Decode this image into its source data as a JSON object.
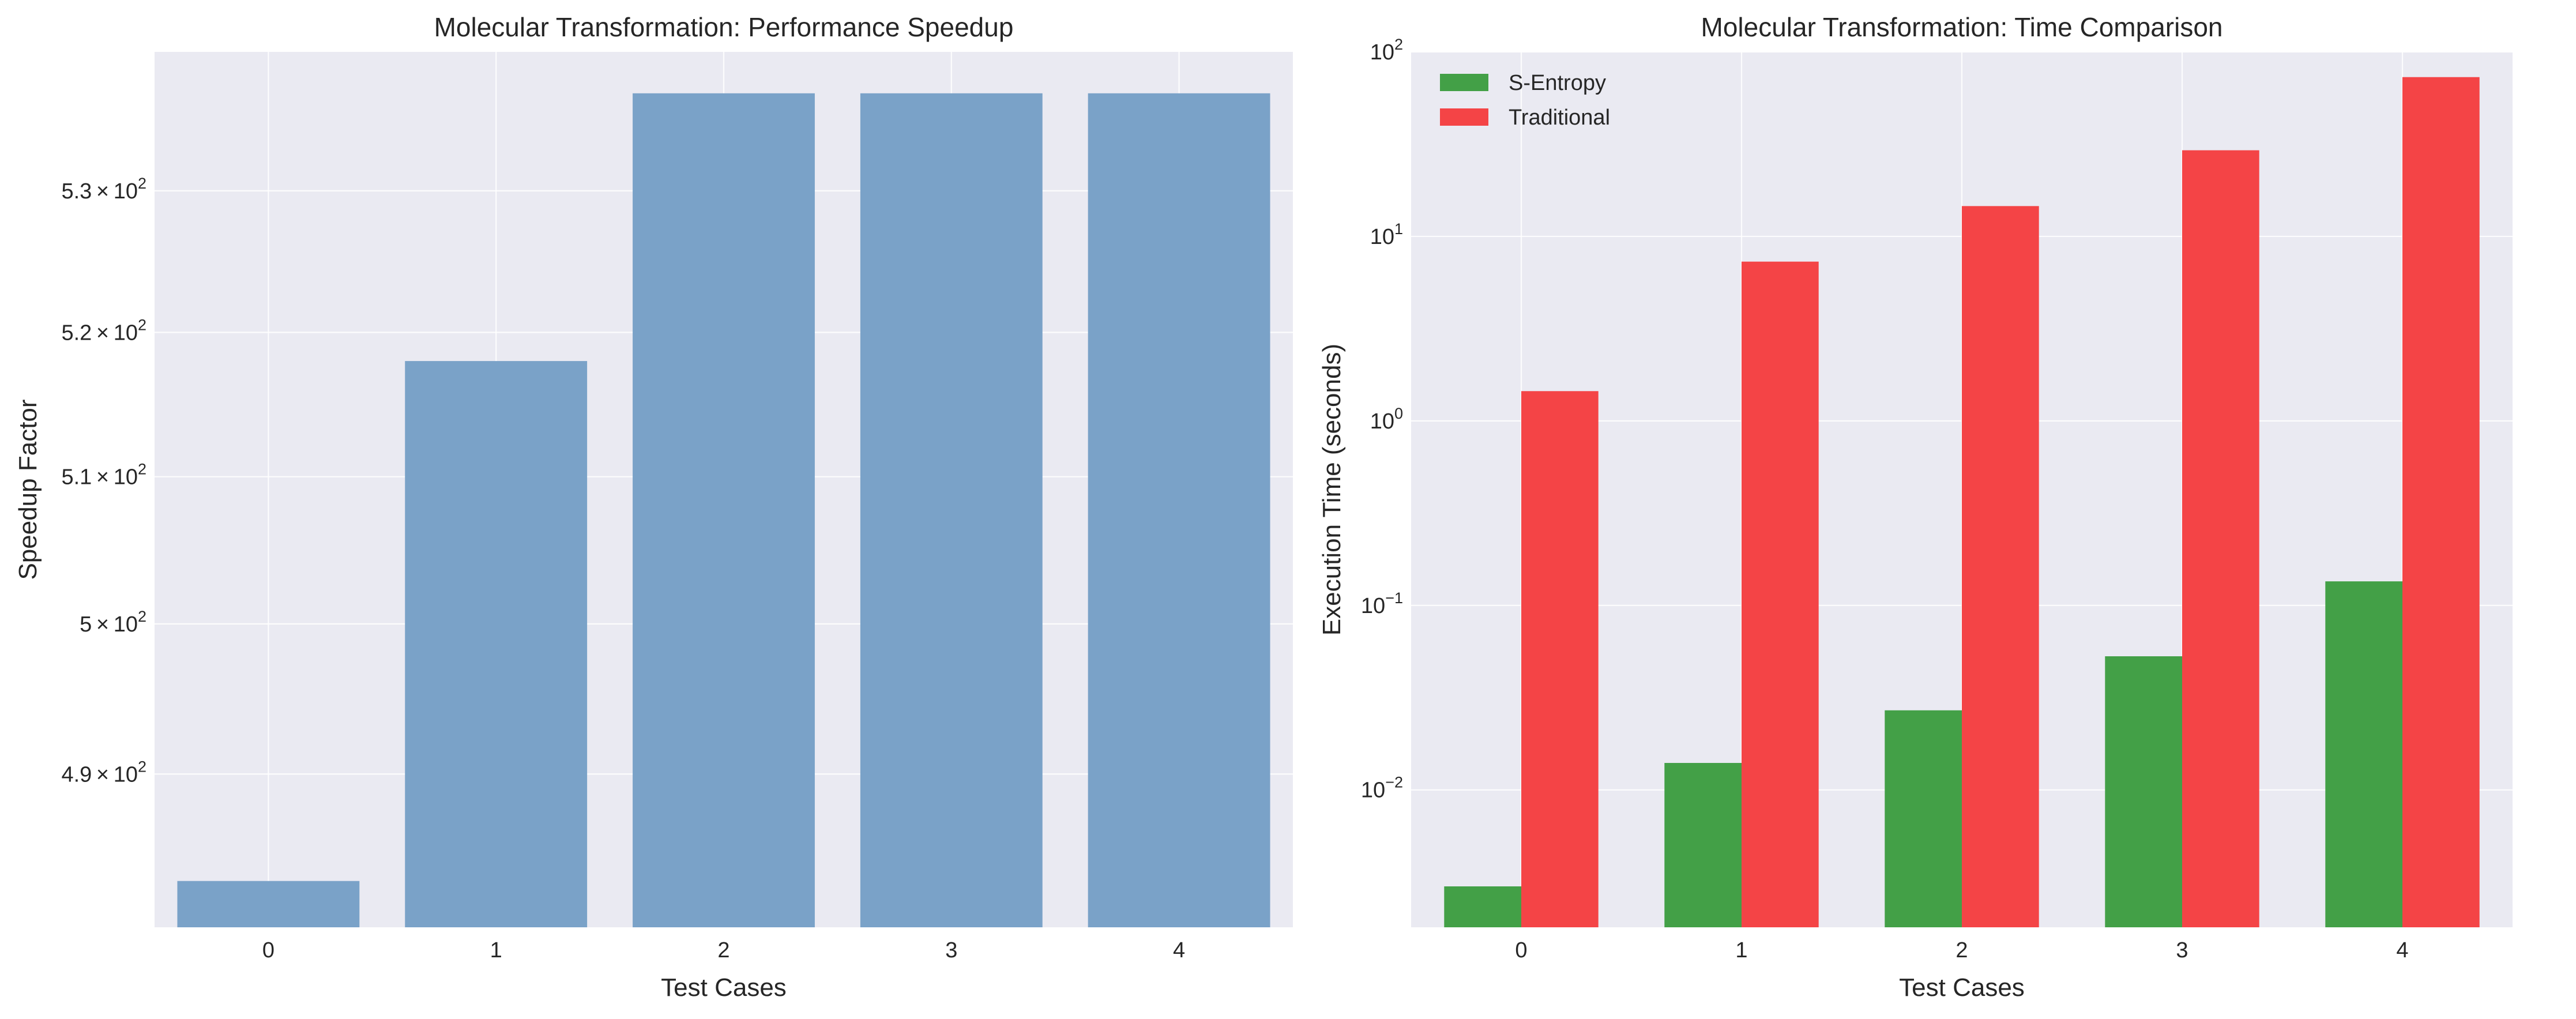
{
  "chart_data": [
    {
      "type": "bar",
      "title": "Molecular Transformation: Performance Speedup",
      "xlabel": "Test Cases",
      "ylabel": "Speedup Factor",
      "yscale": "log",
      "categories": [
        "0",
        "1",
        "2",
        "3",
        "4"
      ],
      "values": [
        483,
        518,
        537,
        537,
        537
      ],
      "ylim": [
        480,
        540
      ],
      "yticks": [
        {
          "value": 490,
          "mantissa": "4.9",
          "exponent": "2"
        },
        {
          "value": 500,
          "mantissa": "5",
          "exponent": "2"
        },
        {
          "value": 510,
          "mantissa": "5.1",
          "exponent": "2"
        },
        {
          "value": 520,
          "mantissa": "5.2",
          "exponent": "2"
        },
        {
          "value": 530,
          "mantissa": "5.3",
          "exponent": "2"
        }
      ],
      "color": "#7aa2c8",
      "grid": true
    },
    {
      "type": "bar",
      "title": "Molecular Transformation: Time Comparison",
      "xlabel": "Test Cases",
      "ylabel": "Execution Time (seconds)",
      "yscale": "log",
      "categories": [
        "0",
        "1",
        "2",
        "3",
        "4"
      ],
      "ylim": [
        0.0018,
        100
      ],
      "yticks": [
        {
          "value": 0.01,
          "base": "10",
          "exponent": "−2"
        },
        {
          "value": 0.1,
          "base": "10",
          "exponent": "−1"
        },
        {
          "value": 1,
          "base": "10",
          "exponent": "0"
        },
        {
          "value": 10,
          "base": "10",
          "exponent": "1"
        },
        {
          "value": 100,
          "base": "10",
          "exponent": "2"
        }
      ],
      "series": [
        {
          "name": "S-Entropy",
          "color": "#43a047",
          "values": [
            0.003,
            0.014,
            0.027,
            0.053,
            0.135
          ]
        },
        {
          "name": "Traditional",
          "color": "#f44446",
          "values": [
            1.45,
            7.3,
            14.6,
            29.3,
            73.0
          ]
        }
      ],
      "legend": "top-left",
      "grid": true
    }
  ]
}
